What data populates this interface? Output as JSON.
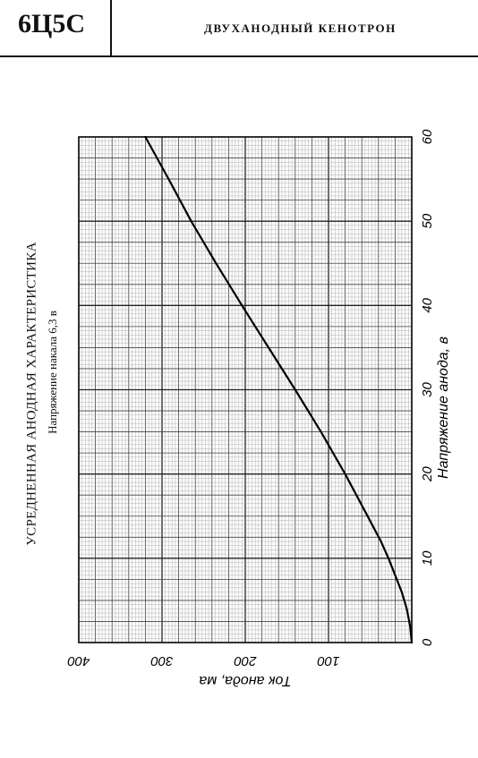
{
  "header": {
    "tube_code": "6Ц5С",
    "tube_description": "ДВУХАНОДНЫЙ КЕНОТРОН"
  },
  "figure": {
    "title": "УСРЕДНЕННАЯ АНОДНАЯ ХАРАКТЕРИСТИКА",
    "subtitle": "Напряжение накала 6,3 в"
  },
  "chart_data": {
    "type": "line",
    "title": "УСРЕДНЕННАЯ АНОДНАЯ ХАРАКТЕРИСТИКА",
    "subtitle": "Напряжение накала 6,3 в",
    "xlabel": "Напряжение анода, в",
    "ylabel": "Ток анода, ма",
    "xlim": [
      0,
      60
    ],
    "ylim": [
      0,
      400
    ],
    "x_ticks": [
      "0",
      "10",
      "20",
      "30",
      "40",
      "50",
      "60"
    ],
    "y_ticks": [
      "100",
      "200",
      "300",
      "400"
    ],
    "orientation": "rotated 90° counter-clockwise",
    "grid": true,
    "series": [
      {
        "x": [
          0,
          2,
          4,
          6,
          8,
          10,
          12,
          15,
          20,
          25,
          30,
          35,
          40,
          45,
          50,
          55,
          60
        ],
        "values": [
          0,
          2,
          6,
          12,
          20,
          28,
          37,
          53,
          80,
          109,
          140,
          172,
          204,
          235,
          265,
          292,
          320
        ]
      }
    ]
  }
}
